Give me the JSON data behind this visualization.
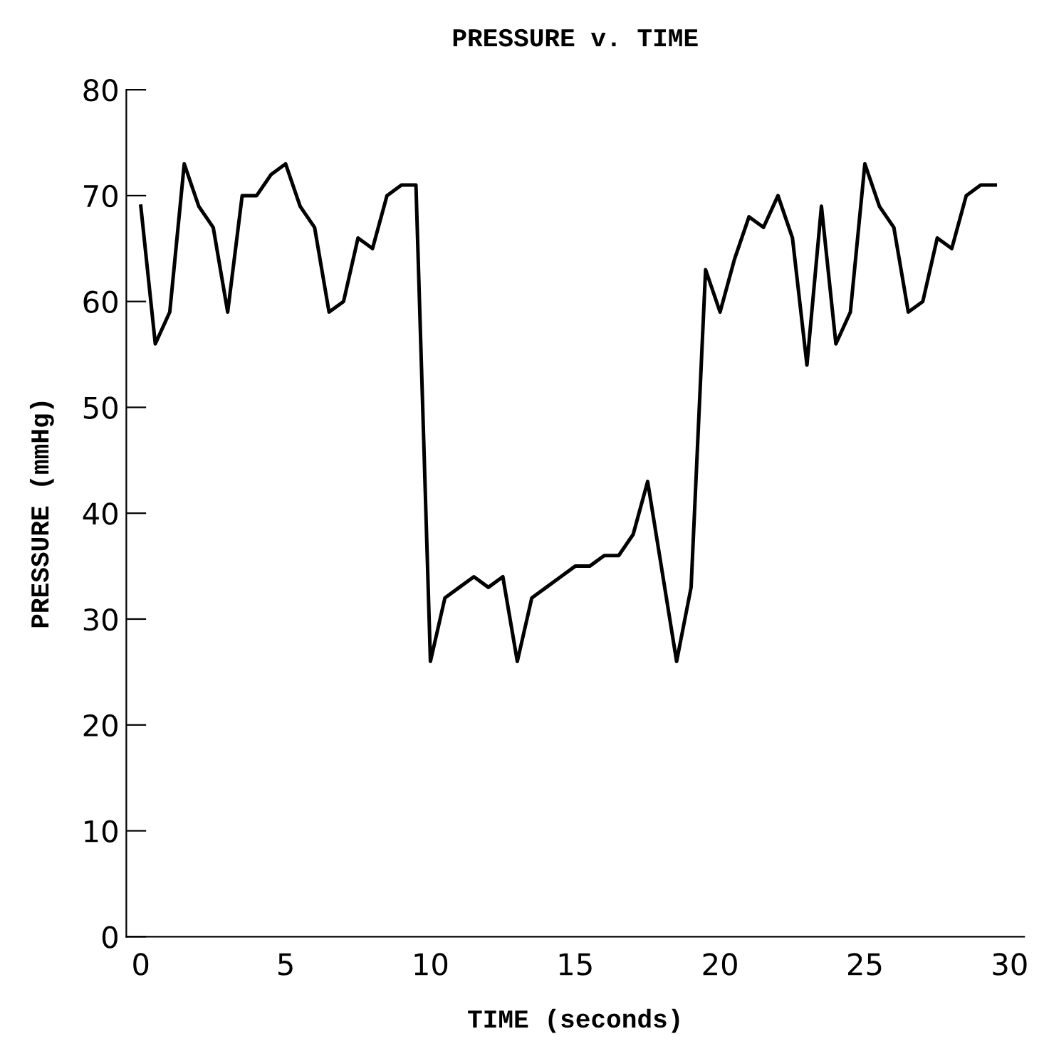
{
  "chart_data": {
    "type": "line",
    "title": "PRESSURE v. TIME",
    "xlabel": "TIME (seconds)",
    "ylabel": "PRESSURE (mmHg)",
    "x": [
      0,
      0.5,
      1,
      1.5,
      2,
      2.5,
      3,
      3.5,
      4,
      4.5,
      5,
      5.5,
      6,
      6.5,
      7,
      7.5,
      8,
      8.5,
      9,
      9.5,
      10,
      10.5,
      11,
      11.5,
      12,
      12.5,
      13,
      13.5,
      14,
      14.5,
      15,
      15.5,
      16,
      16.5,
      17,
      17.5,
      18.5,
      19,
      19.5,
      20,
      20.5,
      21,
      21.5,
      22,
      22.5,
      23,
      23.5,
      24,
      24.5,
      25,
      25.5,
      26,
      26.5,
      27,
      27.5,
      28,
      28.5,
      29,
      29.5
    ],
    "series": [
      {
        "color": "#000000",
        "values": [
          69,
          56,
          59,
          73,
          69,
          67,
          59,
          70,
          70,
          72,
          73,
          69,
          67,
          59,
          60,
          66,
          65,
          70,
          71,
          71,
          26,
          32,
          33,
          34,
          33,
          34,
          26,
          32,
          33,
          34,
          35,
          35,
          36,
          36,
          38,
          43,
          26,
          33,
          63,
          59,
          64,
          68,
          67,
          70,
          66,
          54,
          69,
          56,
          59,
          73,
          69,
          67,
          59,
          60,
          66,
          65,
          70,
          71,
          71
        ]
      }
    ],
    "xlim": [
      -0.5,
      30.5
    ],
    "ylim": [
      0,
      80
    ],
    "xticks": [
      0,
      5,
      10,
      15,
      20,
      25,
      30
    ],
    "yticks": [
      0,
      10,
      20,
      30,
      40,
      50,
      60,
      70,
      80
    ],
    "grid": false,
    "legend": false,
    "marker": "none",
    "line_style": "solid"
  }
}
